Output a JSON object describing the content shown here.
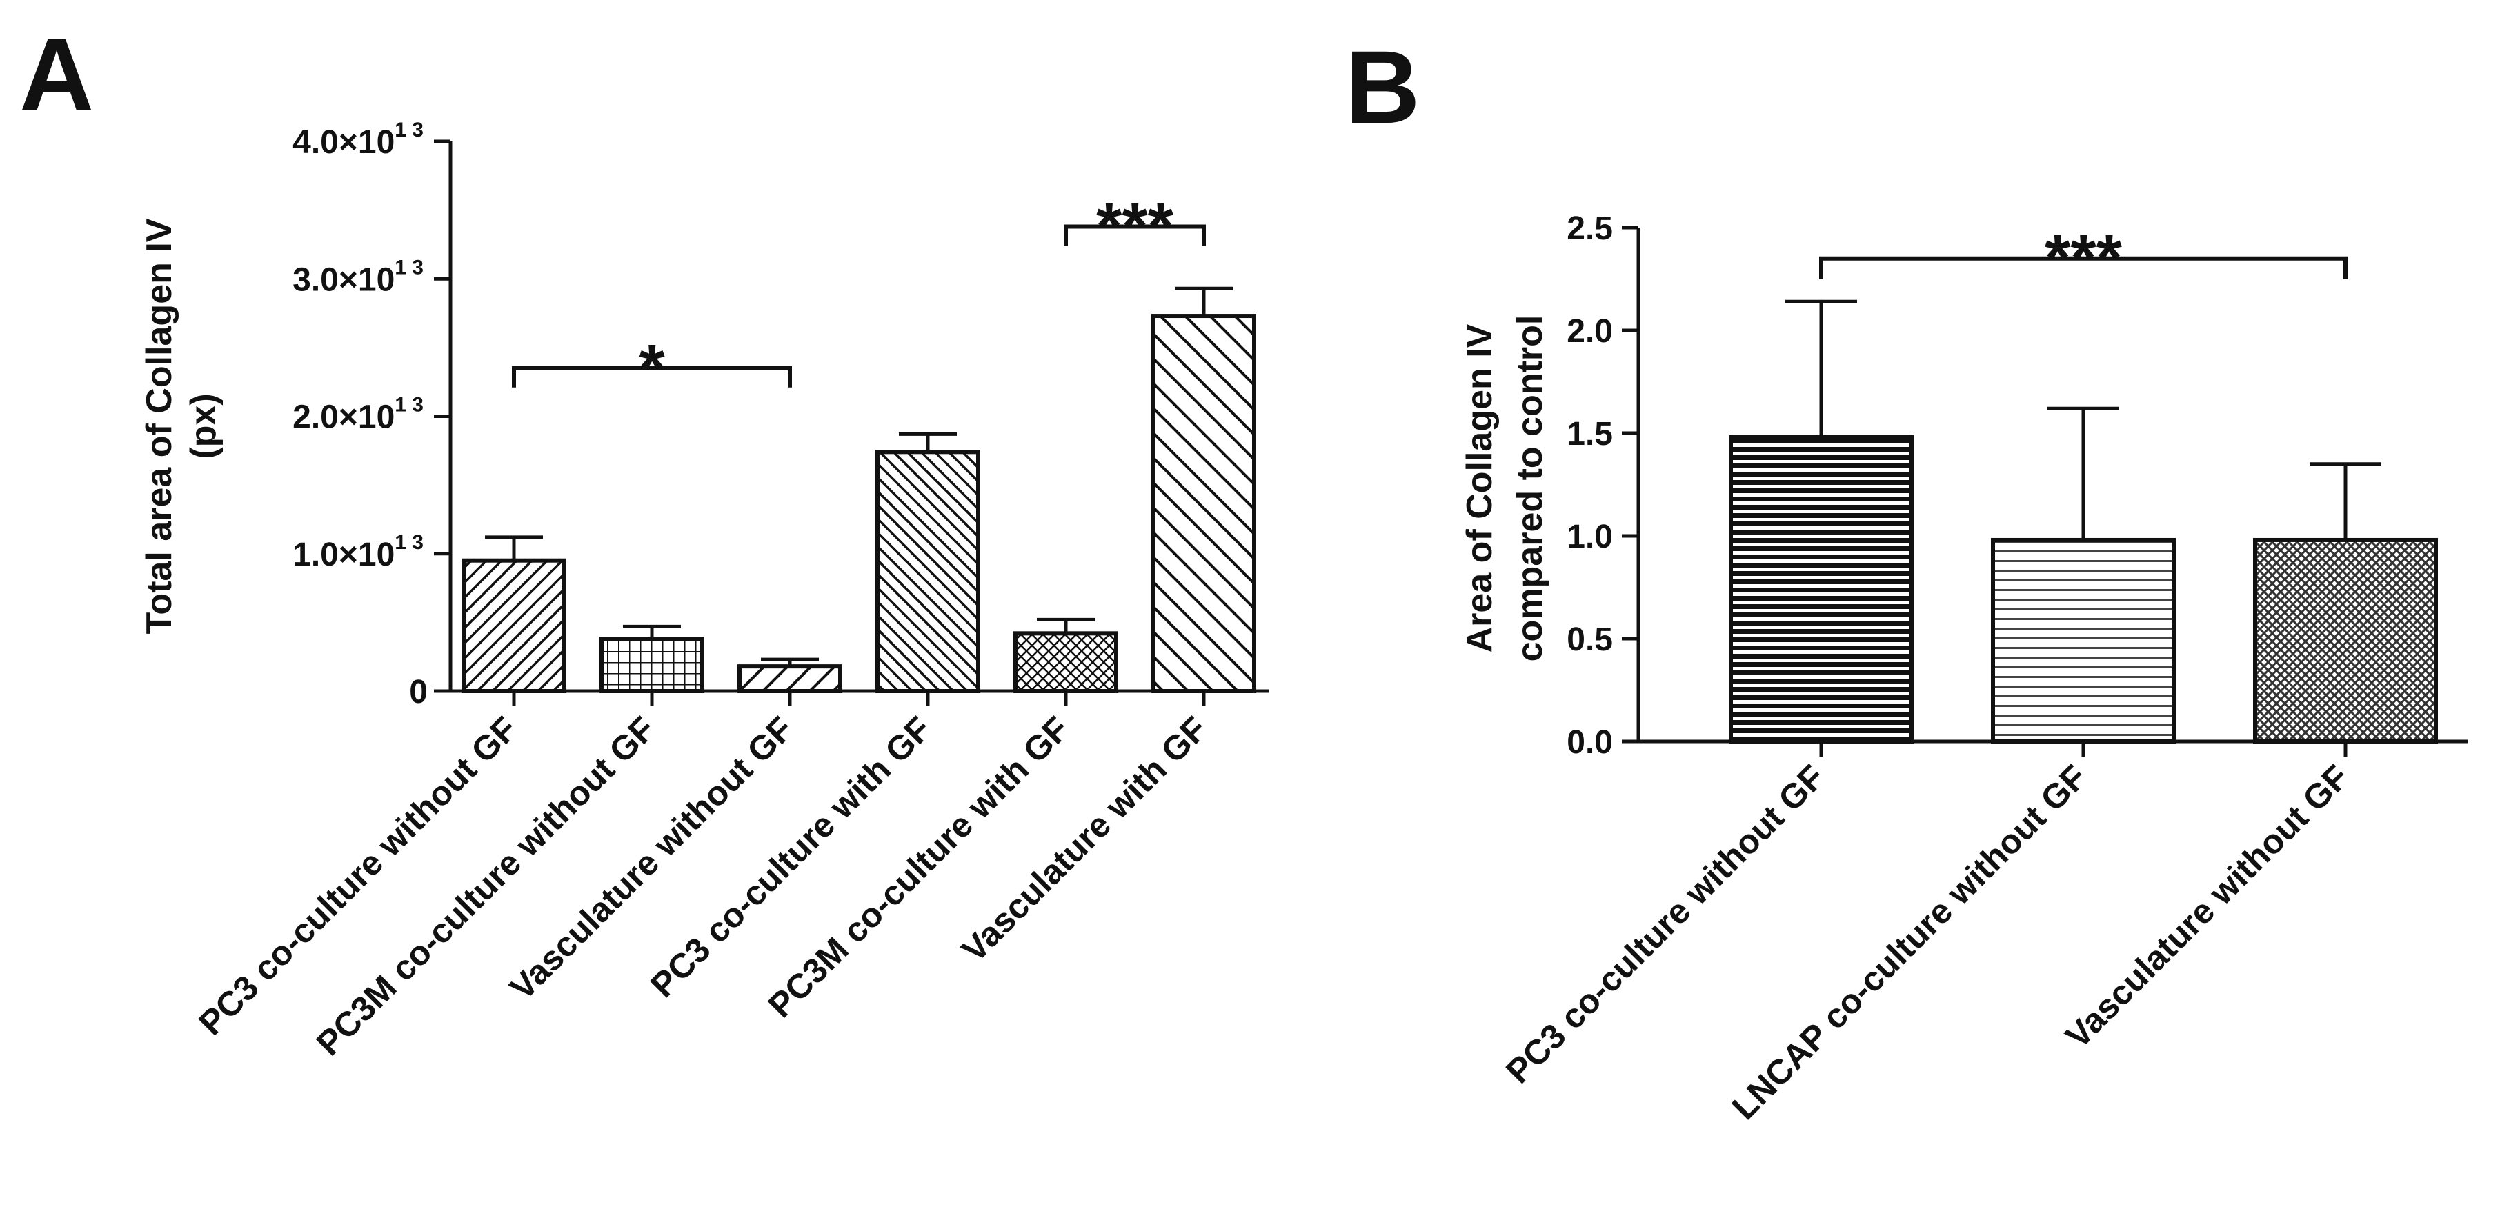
{
  "chart_data": [
    {
      "panel": "A",
      "type": "bar",
      "ylabel_line1": "Total area of Collagen IV",
      "ylabel_line2": "(px)",
      "ylim": [
        0,
        40000000000000.0
      ],
      "yticks": [
        0,
        10000000000000.0,
        20000000000000.0,
        30000000000000.0,
        40000000000000.0
      ],
      "ytick_labels": [
        {
          "value": 0,
          "mantissa": "0",
          "exp": ""
        },
        {
          "value": 10000000000000.0,
          "mantissa": "1.0×10",
          "exp": "1 3"
        },
        {
          "value": 20000000000000.0,
          "mantissa": "2.0×10",
          "exp": "1 3"
        },
        {
          "value": 30000000000000.0,
          "mantissa": "3.0×10",
          "exp": "1 3"
        },
        {
          "value": 40000000000000.0,
          "mantissa": "4.0×10",
          "exp": "1 3"
        }
      ],
      "categories": [
        "PC3 co-culture without GF",
        "PC3M co-culture without GF",
        "Vasculature without GF",
        "PC3 co-culture with GF",
        "PC3M co-culture with GF",
        "Vasculature with GF"
      ],
      "values": [
        9500000000000.0,
        3800000000000.0,
        1800000000000.0,
        17400000000000.0,
        4200000000000.0,
        27300000000000.0
      ],
      "errors": [
        1700000000000.0,
        900000000000.0,
        500000000000.0,
        1300000000000.0,
        1000000000000.0,
        2000000000000.0
      ],
      "patterns": [
        "diag-right",
        "grid",
        "diag-right-wide",
        "diag-left",
        "crosshatch",
        "diag-left-wide"
      ],
      "significance": [
        {
          "from": 0,
          "to": 2,
          "label": "*",
          "level": 23500000000000.0
        },
        {
          "from": 4,
          "to": 5,
          "label": "***",
          "level": 33800000000000.0
        }
      ]
    },
    {
      "panel": "B",
      "type": "bar",
      "ylabel_line1": "Area of Collagen IV",
      "ylabel_line2": "compared to control",
      "ylim": [
        0,
        2.5
      ],
      "yticks": [
        0,
        0.5,
        1.0,
        1.5,
        2.0,
        2.5
      ],
      "ytick_labels": [
        {
          "value": 0,
          "mantissa": "0.0",
          "exp": ""
        },
        {
          "value": 0.5,
          "mantissa": "0.5",
          "exp": ""
        },
        {
          "value": 1.0,
          "mantissa": "1.0",
          "exp": ""
        },
        {
          "value": 1.5,
          "mantissa": "1.5",
          "exp": ""
        },
        {
          "value": 2.0,
          "mantissa": "2.0",
          "exp": ""
        },
        {
          "value": 2.5,
          "mantissa": "2.5",
          "exp": ""
        }
      ],
      "categories": [
        "PC3 co-culture without GF",
        "LNCAP co-culture without GF",
        "Vasculature without GF"
      ],
      "values": [
        1.48,
        0.98,
        0.98
      ],
      "errors": [
        0.66,
        0.64,
        0.37
      ],
      "patterns": [
        "hstripe-dense",
        "hstripe-light",
        "checker"
      ],
      "significance": [
        {
          "from": 0,
          "to": 2,
          "label": "***",
          "level": 2.35
        }
      ]
    }
  ]
}
